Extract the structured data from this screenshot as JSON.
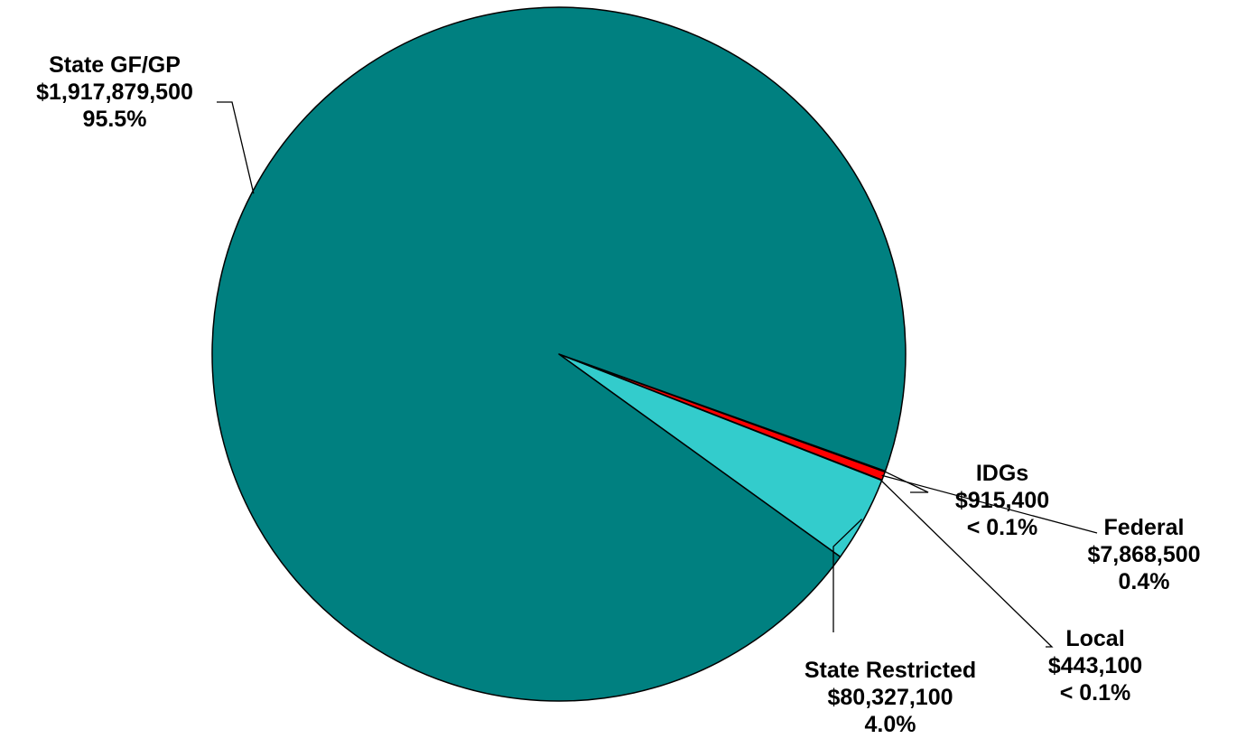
{
  "chart_data": {
    "type": "pie",
    "title": "",
    "start_angle_deg": 19.7,
    "direction": "clockwise",
    "slices": [
      {
        "name": "IDGs",
        "value": 915400,
        "value_label": "$915,400",
        "pct_label": "< 0.1%",
        "color": "#000080"
      },
      {
        "name": "Federal",
        "value": 7868500,
        "value_label": "$7,868,500",
        "pct_label": "0.4%",
        "color": "#FF0000"
      },
      {
        "name": "Local",
        "value": 443100,
        "value_label": "$443,100",
        "pct_label": "< 0.1%",
        "color": "#008080"
      },
      {
        "name": "State Restricted",
        "value": 80327100,
        "value_label": "$80,327,100",
        "pct_label": "4.0%",
        "color": "#33CCCC"
      },
      {
        "name": "State GF/GP",
        "value": 1917879500,
        "value_label": "$1,917,879,500",
        "pct_label": "95.5%",
        "color": "#008080"
      }
    ]
  }
}
